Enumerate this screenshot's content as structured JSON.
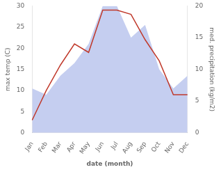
{
  "chart_data": {
    "type": "line",
    "categories": [
      "Jan",
      "Feb",
      "Mar",
      "Apr",
      "May",
      "Jun",
      "Jul",
      "Aug",
      "Sep",
      "Oct",
      "Nov",
      "Dec"
    ],
    "xlabel": "date (month)",
    "ylabel": "max temp (C)",
    "y2label": "med. precipitation (kg/m2)",
    "series": [
      {
        "type": "area",
        "color": "#c5cef0",
        "axis": "y2",
        "values": [
          7,
          6,
          9,
          11,
          14,
          20,
          20,
          15,
          17,
          10,
          7,
          9
        ]
      },
      {
        "type": "line",
        "color": "#c0392b",
        "values": [
          3,
          10,
          16,
          21,
          19,
          29,
          29,
          28,
          22,
          17,
          9,
          9
        ]
      }
    ],
    "ylim": [
      0,
      30
    ],
    "yticks": [
      0,
      5,
      10,
      15,
      20,
      25,
      30
    ],
    "y2lim": [
      0,
      20
    ],
    "y2ticks": [
      0,
      5,
      10,
      15,
      20
    ],
    "grid": false
  }
}
